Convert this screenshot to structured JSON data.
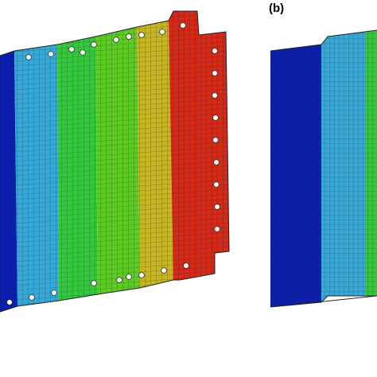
{
  "figure": {
    "panels": [
      {
        "id": "a",
        "label": ""
      },
      {
        "id": "b",
        "label": "(b)"
      }
    ],
    "colors": {
      "dark_blue": "#0c1fb0",
      "cyan": "#36a9d8",
      "green": "#34c93c",
      "lime": "#5ccc22",
      "gold": "#c6b423",
      "red": "#d42a18",
      "mesh_line": "#1a1a1a",
      "hole": "#ffffff",
      "background": "#ffffff"
    }
  }
}
